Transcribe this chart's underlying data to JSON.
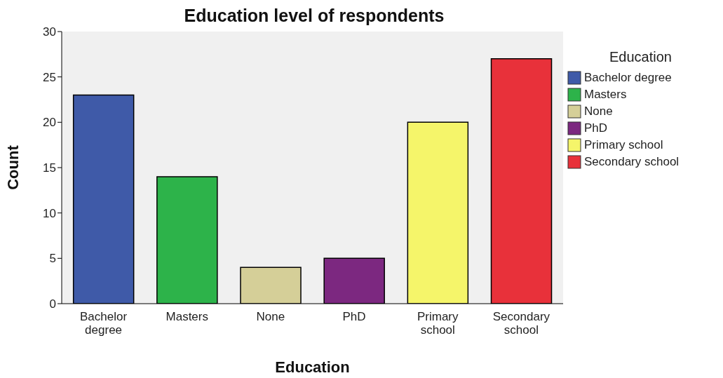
{
  "chart_data": {
    "type": "bar",
    "title": "Education level of respondents",
    "xlabel": "Education",
    "ylabel": "Count",
    "legend_title": "Education",
    "categories": [
      "Bachelor degree",
      "Masters",
      "None",
      "PhD",
      "Primary school",
      "Secondary school"
    ],
    "stacked": true,
    "series": [
      {
        "name": "Bachelor degree",
        "color": "#3f5aa8",
        "values": [
          23,
          null,
          null,
          null,
          null,
          null
        ]
      },
      {
        "name": "Masters",
        "color": "#2db34a",
        "values": [
          null,
          14,
          null,
          null,
          null,
          null
        ]
      },
      {
        "name": "None",
        "color": "#d5cf98",
        "values": [
          null,
          null,
          4,
          null,
          null,
          null
        ]
      },
      {
        "name": "PhD",
        "color": "#7c2880",
        "values": [
          null,
          null,
          null,
          5,
          null,
          null
        ]
      },
      {
        "name": "Primary school",
        "color": "#f5f56a",
        "values": [
          null,
          null,
          null,
          null,
          20,
          null
        ]
      },
      {
        "name": "Secondary school",
        "color": "#e8313a",
        "values": [
          null,
          null,
          null,
          null,
          null,
          27
        ]
      }
    ],
    "ylim": [
      0,
      30
    ],
    "yticks": [
      0,
      5,
      10,
      15,
      20,
      25,
      30
    ],
    "grid": false,
    "legend": "right"
  }
}
